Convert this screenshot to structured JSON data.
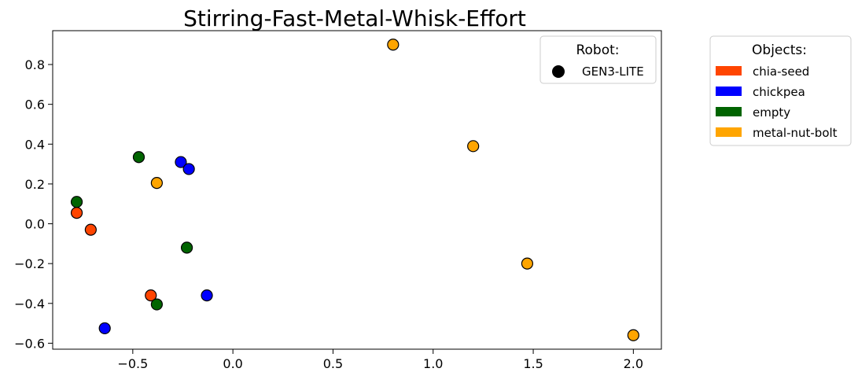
{
  "chart_data": {
    "type": "scatter",
    "title": "Stirring-Fast-Metal-Whisk-Effort",
    "xlabel": "",
    "ylabel": "",
    "xlim": [
      -0.9,
      2.14
    ],
    "ylim": [
      -0.63,
      0.97
    ],
    "xticks": [
      -0.5,
      0.0,
      0.5,
      1.0,
      1.5,
      2.0
    ],
    "xtick_labels": [
      "−0.5",
      "0.0",
      "0.5",
      "1.0",
      "1.5",
      "2.0"
    ],
    "yticks": [
      -0.6,
      -0.4,
      -0.2,
      0.0,
      0.2,
      0.4,
      0.6,
      0.8
    ],
    "ytick_labels": [
      "−0.6",
      "−0.4",
      "−0.2",
      "0.0",
      "0.2",
      "0.4",
      "0.6",
      "0.8"
    ],
    "grid": false,
    "series": [
      {
        "name": "chia-seed",
        "color": "#ff4500",
        "points": [
          {
            "x": -0.78,
            "y": 0.055
          },
          {
            "x": -0.71,
            "y": -0.03
          },
          {
            "x": -0.41,
            "y": -0.36
          }
        ]
      },
      {
        "name": "chickpea",
        "color": "#0000ff",
        "points": [
          {
            "x": -0.26,
            "y": 0.31
          },
          {
            "x": -0.22,
            "y": 0.275
          },
          {
            "x": -0.13,
            "y": -0.36
          },
          {
            "x": -0.64,
            "y": -0.525
          }
        ]
      },
      {
        "name": "empty",
        "color": "#006400",
        "points": [
          {
            "x": -0.47,
            "y": 0.335
          },
          {
            "x": -0.78,
            "y": 0.11
          },
          {
            "x": -0.23,
            "y": -0.12
          },
          {
            "x": -0.38,
            "y": -0.405
          }
        ]
      },
      {
        "name": "metal-nut-bolt",
        "color": "#ffa500",
        "points": [
          {
            "x": 0.8,
            "y": 0.9
          },
          {
            "x": 1.2,
            "y": 0.39
          },
          {
            "x": 1.47,
            "y": -0.2
          },
          {
            "x": 2.0,
            "y": -0.56
          },
          {
            "x": -0.38,
            "y": 0.205
          }
        ]
      }
    ],
    "robot_legend": {
      "title": "Robot:",
      "items": [
        {
          "label": "GEN3-LITE",
          "marker": "circle",
          "color": "#000000"
        }
      ],
      "placement": "top-right inside plot"
    },
    "objects_legend": {
      "title": "Objects:",
      "items": [
        {
          "label": "chia-seed",
          "color": "#ff4500"
        },
        {
          "label": "chickpea",
          "color": "#0000ff"
        },
        {
          "label": "empty",
          "color": "#006400"
        },
        {
          "label": "metal-nut-bolt",
          "color": "#ffa500"
        }
      ],
      "placement": "outside right"
    }
  }
}
